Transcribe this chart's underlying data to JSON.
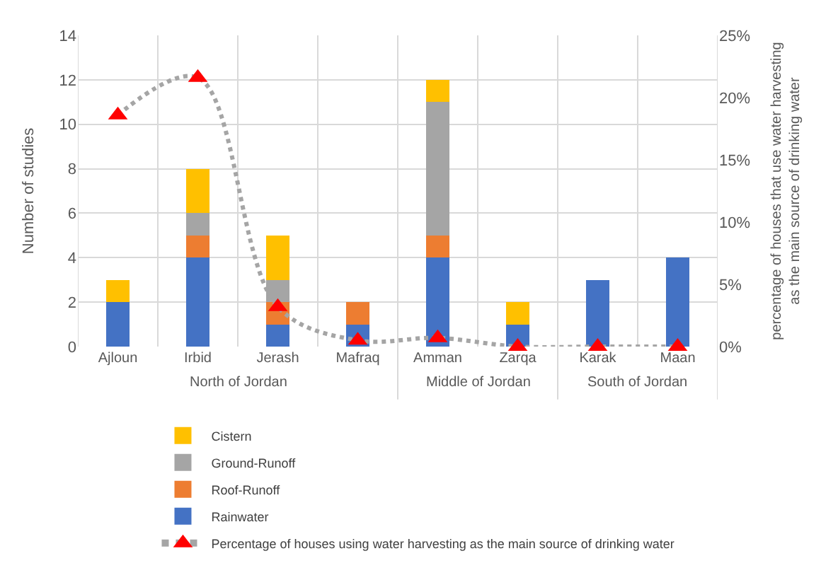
{
  "chart_data": {
    "type": "bar",
    "stacked": true,
    "categories": [
      "Ajloun",
      "Irbid",
      "Jerash",
      "Mafraq",
      "Amman",
      "Zarqa",
      "Karak",
      "Maan"
    ],
    "ylabel": "Number of studies",
    "y2label": "percentage of houses that use water harvesting as the main source of drinking water",
    "ylim": [
      0,
      14
    ],
    "yticks": [
      0,
      2,
      4,
      6,
      8,
      10,
      12,
      14
    ],
    "y2lim": [
      0,
      25
    ],
    "y2ticks": [
      {
        "value": 0,
        "label": "0%"
      },
      {
        "value": 5,
        "label": "5%"
      },
      {
        "value": 10,
        "label": "10%"
      },
      {
        "value": 15,
        "label": "15%"
      },
      {
        "value": 20,
        "label": "20%"
      },
      {
        "value": 25,
        "label": "25%"
      }
    ],
    "grid": true,
    "legend": "bottom",
    "annotations": [
      "North of Jordan",
      "Middle of Jordan",
      "South of Jordan"
    ],
    "series": [
      {
        "name": "Rainwater",
        "color": "#4472c4",
        "values": [
          2,
          4,
          1,
          1,
          4,
          1,
          3,
          4
        ]
      },
      {
        "name": "Roof-Runoff",
        "color": "#ed7d31",
        "values": [
          0,
          1,
          1,
          1,
          1,
          0,
          0,
          0
        ]
      },
      {
        "name": "Ground-Runoff",
        "color": "#a5a5a5",
        "values": [
          0,
          1,
          1,
          0,
          6,
          0,
          0,
          0
        ]
      },
      {
        "name": "Cistern",
        "color": "#ffc000",
        "values": [
          1,
          2,
          2,
          0,
          1,
          1,
          0,
          0
        ]
      },
      {
        "name": "Percentage of houses using water harvesting as the main source of drinking water",
        "type": "line",
        "axis": "y2",
        "color": "#a5a5a5",
        "colors": [
          "#ff0000",
          "#ff0000",
          "#ff0000",
          "#ff0000",
          "#ff0000",
          "#ff0000",
          "#ff0000",
          "#ff0000"
        ],
        "marker": "triangle",
        "line_style": "dotted",
        "values": [
          18.6,
          21.6,
          3.2,
          0.5,
          0.7,
          0,
          0,
          0
        ]
      }
    ]
  }
}
